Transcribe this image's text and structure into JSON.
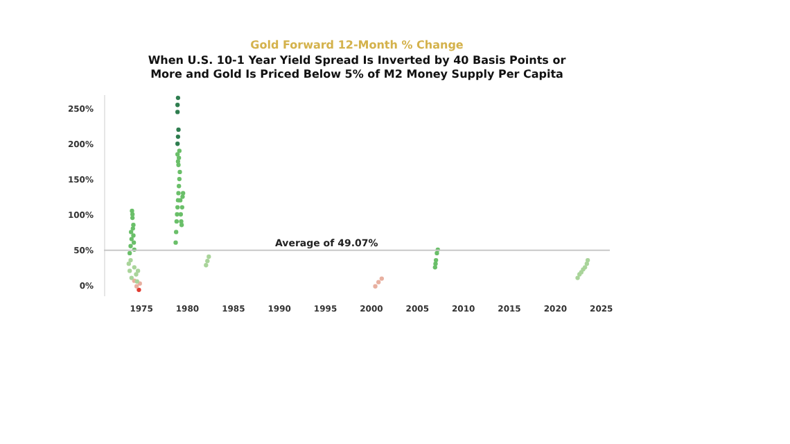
{
  "chart_data": {
    "type": "scatter",
    "title": "Gold Forward 12-Month % Change",
    "subtitle": "When U.S. 10-1 Year Yield Spread Is Inverted by 40 Basis Points or More and Gold Is Priced Below 5% of M2 Money Supply Per Capita",
    "xlim": [
      1971,
      2026
    ],
    "xticks": [
      1975,
      1980,
      1985,
      1990,
      1995,
      2000,
      2005,
      2010,
      2015,
      2020,
      2025
    ],
    "ylim": [
      -15,
      270
    ],
    "yticks": [
      {
        "value": 0,
        "label": "0%"
      },
      {
        "value": 50,
        "label": "50%"
      },
      {
        "value": 100,
        "label": "100%"
      },
      {
        "value": 150,
        "label": "150%"
      },
      {
        "value": 200,
        "label": "200%"
      },
      {
        "value": 250,
        "label": "250%"
      }
    ],
    "grid": false,
    "legend": false,
    "marker": "circle",
    "ref_lines": [
      {
        "axis": "y",
        "value": 49.07,
        "label": "Average of 49.07%",
        "color": "#c8c8c8"
      }
    ],
    "series": [
      {
        "color": "#e03c31",
        "x": [
          1974.8
        ],
        "values": [
          -7
        ]
      },
      {
        "color": "#e8b0a0",
        "x": [
          1974.3,
          1974.55,
          1974.9,
          2000.5,
          2000.85,
          2001.2
        ],
        "values": [
          6,
          -2,
          2,
          -2,
          4,
          9
        ]
      },
      {
        "color": "#a9d49a",
        "x": [
          1973.7,
          1973.8,
          1973.9,
          1974.0,
          1974.3,
          1974.5,
          1974.6,
          1974.7,
          1982.1,
          1982.25,
          1982.4,
          2022.5,
          2022.7,
          2022.9,
          2023.1,
          2023.3,
          2023.5,
          2023.6
        ],
        "values": [
          30,
          20,
          35,
          10,
          25,
          15,
          5,
          20,
          28,
          34,
          40,
          10,
          15,
          18,
          22,
          25,
          30,
          35
        ]
      },
      {
        "color": "#6abf69",
        "x": [
          1973.8,
          1973.9,
          1973.95,
          1974.0,
          1974.05,
          1974.1,
          1974.1,
          1974.15,
          1974.2,
          1974.2,
          1974.25,
          1974.3,
          1978.8,
          1978.85,
          1978.9,
          1978.95,
          1979.0,
          1979.05,
          1979.1,
          1979.15,
          1979.2,
          1979.25,
          1979.3,
          1979.35,
          1979.4,
          1979.45,
          1979.5,
          1979.55,
          1979.6,
          1979.1,
          1979.15,
          1979.2,
          1979.0,
          1979.05,
          2007.0,
          2007.05,
          2007.1,
          2007.2,
          2007.3
        ],
        "values": [
          45,
          55,
          75,
          65,
          105,
          95,
          100,
          80,
          70,
          85,
          60,
          50,
          60,
          75,
          90,
          100,
          110,
          120,
          130,
          140,
          150,
          160,
          120,
          100,
          90,
          85,
          110,
          125,
          130,
          170,
          180,
          190,
          185,
          175,
          25,
          30,
          35,
          45,
          50
        ]
      },
      {
        "color": "#2e7d4f",
        "x": [
          1979.0,
          1979.05,
          1979.1,
          1979.0,
          1979.05,
          1979.0
        ],
        "values": [
          200,
          210,
          220,
          255,
          265,
          245
        ]
      }
    ]
  }
}
